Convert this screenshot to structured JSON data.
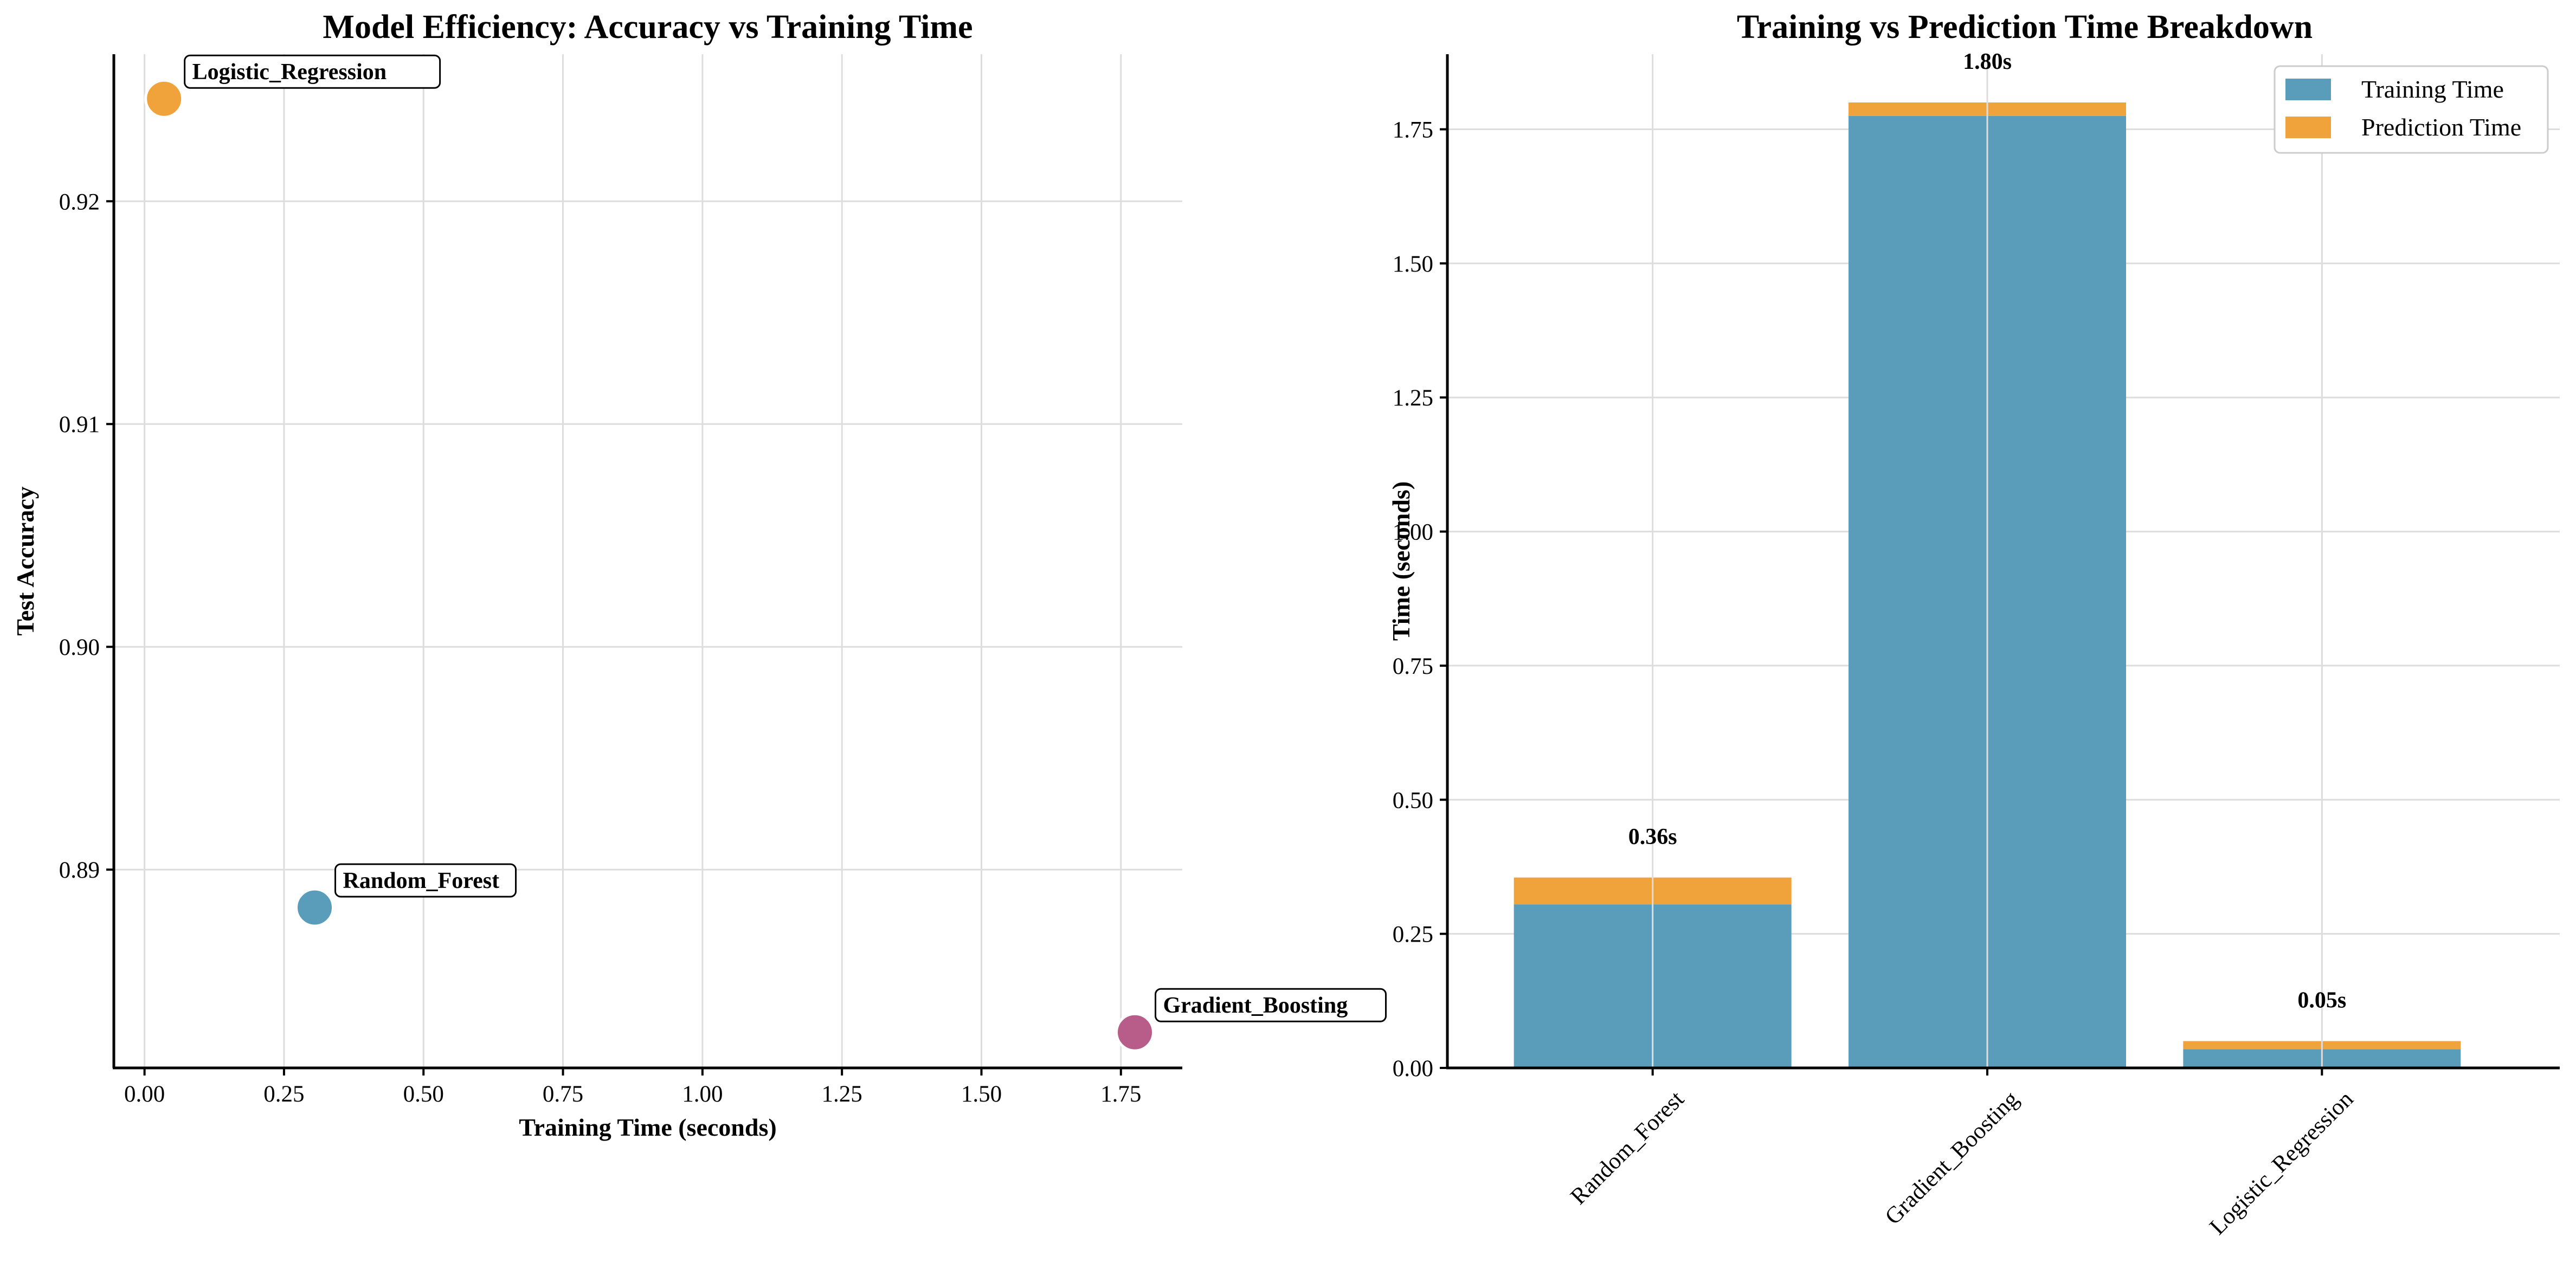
{
  "chart_data": [
    {
      "type": "scatter",
      "title": "Model Efficiency: Accuracy vs Training Time",
      "xlabel": "Training Time (seconds)",
      "ylabel": "Test Accuracy",
      "xlim": [
        -0.055,
        1.86
      ],
      "ylim": [
        0.8811,
        0.9266
      ],
      "xticks": [
        "0.00",
        "0.25",
        "0.50",
        "0.75",
        "1.00",
        "1.25",
        "1.50",
        "1.75"
      ],
      "xtick_values": [
        0,
        0.25,
        0.5,
        0.75,
        1.0,
        1.25,
        1.5,
        1.75
      ],
      "yticks": [
        "0.89",
        "0.90",
        "0.91",
        "0.92"
      ],
      "ytick_values": [
        0.89,
        0.9,
        0.91,
        0.92
      ],
      "grid": true,
      "points": [
        {
          "label": "Random_Forest",
          "x": 0.305,
          "y": 0.8883,
          "color": "#5a9dbb"
        },
        {
          "label": "Gradient_Boosting",
          "x": 1.775,
          "y": 0.8827,
          "color": "#b85d8a"
        },
        {
          "label": "Logistic_Regression",
          "x": 0.035,
          "y": 0.9246,
          "color": "#f0a33a"
        }
      ]
    },
    {
      "type": "bar",
      "stacked": true,
      "title": "Training vs Prediction Time Breakdown",
      "xlabel": "",
      "ylabel": "Time (seconds)",
      "ylim": [
        0,
        1.89
      ],
      "yticks": [
        "0.00",
        "0.25",
        "0.50",
        "0.75",
        "1.00",
        "1.25",
        "1.50",
        "1.75"
      ],
      "ytick_values": [
        0,
        0.25,
        0.5,
        0.75,
        1.0,
        1.25,
        1.5,
        1.75
      ],
      "grid": true,
      "legend_position": "top-right",
      "categories": [
        "Random_Forest",
        "Gradient_Boosting",
        "Logistic_Regression"
      ],
      "series": [
        {
          "name": "Training Time",
          "values": [
            0.305,
            1.775,
            0.035
          ],
          "color": "#5a9dbb"
        },
        {
          "name": "Prediction Time",
          "values": [
            0.05,
            0.025,
            0.015
          ],
          "color": "#f0a33a"
        }
      ],
      "total_labels": [
        "0.36s",
        "1.80s",
        "0.05s"
      ]
    }
  ]
}
